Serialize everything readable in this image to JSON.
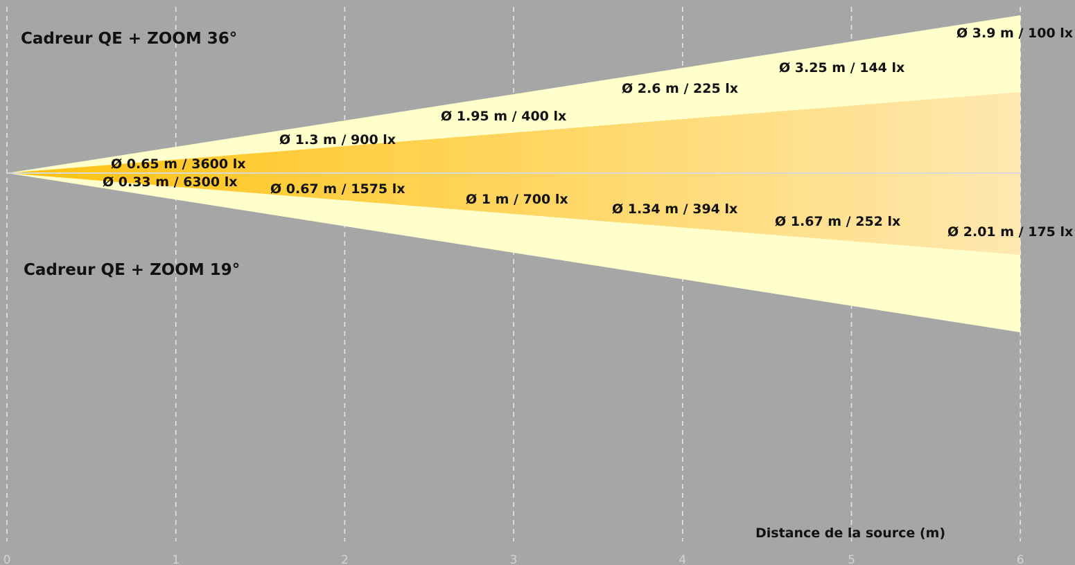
{
  "chart_data": {
    "type": "area",
    "xlabel": "Distance de la source (m)",
    "xlim": [
      0,
      6
    ],
    "x_ticks": [
      "0",
      "1",
      "2",
      "3",
      "4",
      "5",
      "6"
    ],
    "grid": "vertical dashed",
    "colors": {
      "background": "#a6a6a6",
      "field": "#ffffcc",
      "beam_hot": "#ffc20e",
      "beam_cool": "#ffe8b0",
      "grid": "#e6e6e6"
    },
    "upper": {
      "title": "Cadreur QE  + ZOOM 36°",
      "beam_angle_deg": 19,
      "field_angle_deg": 36,
      "labels": [
        {
          "distance": 0.5,
          "diameter_m": 0.65,
          "illuminance_lx": 3600,
          "text": "Ø 0.65 m / 3600 lx"
        },
        {
          "distance": 1,
          "diameter_m": 1.3,
          "illuminance_lx": 900,
          "text": "Ø 1.3 m / 900 lx"
        },
        {
          "distance": 1.5,
          "diameter_m": 1.95,
          "illuminance_lx": 400,
          "text": "Ø 1.95 m / 400 lx"
        },
        {
          "distance": 2,
          "diameter_m": 2.6,
          "illuminance_lx": 225,
          "text": "Ø 2.6 m / 225 lx"
        },
        {
          "distance": 2.5,
          "diameter_m": 3.25,
          "illuminance_lx": 144,
          "text": "Ø 3.25 m / 144 lx"
        },
        {
          "distance": 3,
          "diameter_m": 3.9,
          "illuminance_lx": 100,
          "text": "Ø 3.9 m / 100 lx"
        }
      ]
    },
    "lower": {
      "title": "Cadreur QE  + ZOOM 19°",
      "beam_angle_deg": 10,
      "field_angle_deg": 19,
      "labels": [
        {
          "distance": 1,
          "diameter_m": 0.33,
          "illuminance_lx": 6300,
          "text": "Ø 0.33 m / 6300 lx"
        },
        {
          "distance": 2,
          "diameter_m": 0.67,
          "illuminance_lx": 1575,
          "text": "Ø 0.67 m / 1575 lx"
        },
        {
          "distance": 3,
          "diameter_m": 1,
          "illuminance_lx": 700,
          "text": "Ø 1 m / 700 lx"
        },
        {
          "distance": 4,
          "diameter_m": 1.34,
          "illuminance_lx": 394,
          "text": "Ø 1.34 m / 394 lx"
        },
        {
          "distance": 5,
          "diameter_m": 1.67,
          "illuminance_lx": 252,
          "text": "Ø 1.67 m / 252 lx"
        },
        {
          "distance": 6,
          "diameter_m": 2.01,
          "illuminance_lx": 175,
          "text": "Ø 2.01 m / 175 lx"
        }
      ]
    }
  }
}
